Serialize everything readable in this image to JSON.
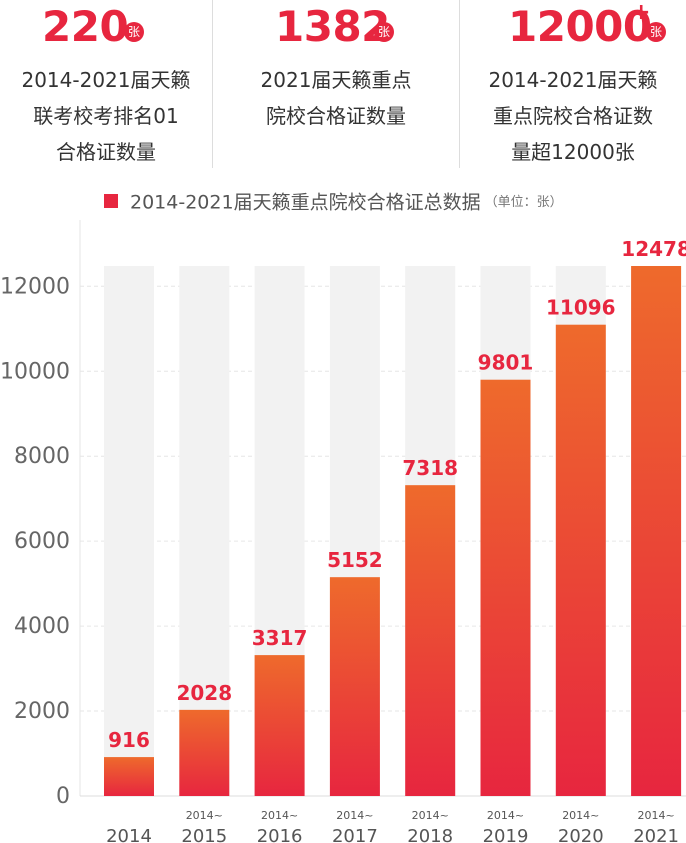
{
  "stats": [
    {
      "value": "220",
      "plus": "",
      "unit": "张",
      "desc_lines": [
        "2014-2021届天籁",
        "联考校考排名01",
        "合格证数量"
      ]
    },
    {
      "value": "1382",
      "plus": "",
      "unit": "张",
      "desc_lines": [
        "2021届天籁重点",
        "院校合格证数量"
      ]
    },
    {
      "value": "12000",
      "plus": "+",
      "unit": "张",
      "desc_lines": [
        "2014-2021届天籁",
        "重点院校合格证数",
        "量超12000张"
      ]
    }
  ],
  "legend": {
    "title": "2014-2021届天籁重点院校合格证总数据",
    "unit": "（单位：张）"
  },
  "colors": {
    "accent": "#e7263f",
    "bar_top": "#ee6a2c",
    "bar_bottom": "#e7263f",
    "track": "#f2f2f2",
    "axis_text": "#666666"
  },
  "chart_data": {
    "type": "bar",
    "title": "2014-2021届天籁重点院校合格证总数据",
    "ylabel": "（单位：张）",
    "xlabel": "",
    "ylim": [
      0,
      12478
    ],
    "yticks": [
      0,
      2000,
      4000,
      6000,
      8000,
      10000,
      12000
    ],
    "grid": true,
    "legend_position": "top",
    "categories": [
      {
        "prefix": "",
        "label": "2014"
      },
      {
        "prefix": "2014~",
        "label": "2015"
      },
      {
        "prefix": "2014~",
        "label": "2016"
      },
      {
        "prefix": "2014~",
        "label": "2017"
      },
      {
        "prefix": "2014~",
        "label": "2018"
      },
      {
        "prefix": "2014~",
        "label": "2019"
      },
      {
        "prefix": "2014~",
        "label": "2020"
      },
      {
        "prefix": "2014~",
        "label": "2021"
      }
    ],
    "values": [
      916,
      2028,
      3317,
      5152,
      7318,
      9801,
      11096,
      12478
    ],
    "value_labels": [
      "916",
      "2028",
      "3317",
      "5152",
      "7318",
      "9801",
      "11096",
      "12478"
    ]
  }
}
